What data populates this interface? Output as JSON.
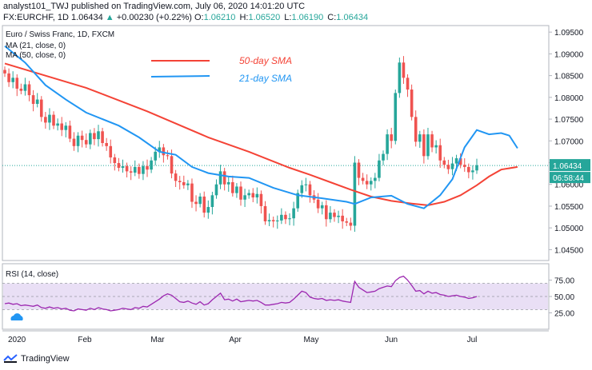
{
  "header": {
    "publisher_line": "analyst101_TWJ published on TradingView.com, July 06, 2020 14:01:20 UTC",
    "symbol": "FX:EURCHF, 1D",
    "last": "1.06434",
    "change_arrow": "▲",
    "change": "+0.00230 (+0.22%)",
    "o_label": "O:",
    "o_value": "1.06210",
    "h_label": "H:",
    "h_value": "1.06520",
    "l_label": "L:",
    "l_value": "1.06190",
    "c_label": "C:",
    "c_value": "1.06434"
  },
  "footer": {
    "brand": "TradingView"
  },
  "colors": {
    "up": "#26a69a",
    "down": "#ef5350",
    "sma50": "#f44336",
    "sma21": "#2196f3",
    "rsi": "#9c27b0",
    "rsi_band": "#e9dff5"
  },
  "chart_data": {
    "type": "candlestick",
    "title": "Euro / Swiss Franc, 1D, FXCM",
    "indicator_labels": [
      "MA (21, close, 0)",
      "MA (50, close, 0)"
    ],
    "legend": [
      {
        "name": "50-day SMA",
        "color": "#f44336"
      },
      {
        "name": "21-day SMA",
        "color": "#2196f3"
      }
    ],
    "price_axis": {
      "ticks": [
        "1.09500",
        "1.09000",
        "1.08500",
        "1.08000",
        "1.07500",
        "1.07000",
        "1.06500",
        "1.06000",
        "1.05500",
        "1.05000",
        "1.04500"
      ],
      "ylim": [
        1.0425,
        1.0965
      ],
      "last_price": "1.06434",
      "countdown": "06:58:44"
    },
    "time_axis": [
      "2020",
      "Feb",
      "Mar",
      "Apr",
      "May",
      "Jun",
      "Jul"
    ],
    "closes": [
      1.0855,
      1.0835,
      1.0845,
      1.082,
      1.0815,
      1.083,
      1.0805,
      1.0785,
      1.0795,
      1.0755,
      1.0742,
      1.076,
      1.0735,
      1.074,
      1.0725,
      1.0735,
      1.0705,
      1.0688,
      1.0712,
      1.0702,
      1.0692,
      1.0718,
      1.0704,
      1.0722,
      1.0695,
      1.0688,
      1.0662,
      1.0649,
      1.0638,
      1.0642,
      1.063,
      1.0627,
      1.064,
      1.0624,
      1.0642,
      1.0634,
      1.0655,
      1.0675,
      1.0685,
      1.0667,
      1.0665,
      1.0625,
      1.0608,
      1.0605,
      1.0598,
      1.0602,
      1.056,
      1.0555,
      1.0572,
      1.0535,
      1.0548,
      1.0575,
      1.06,
      1.063,
      1.06,
      1.0605,
      1.058,
      1.0595,
      1.0565,
      1.0575,
      1.058,
      1.057,
      1.0578,
      1.055,
      1.0515,
      1.0518,
      1.0515,
      1.0517,
      1.053,
      1.052,
      1.0522,
      1.0545,
      1.058,
      1.0598,
      1.06,
      1.0575,
      1.0565,
      1.0545,
      1.0552,
      1.052,
      1.0535,
      1.0525,
      1.0528,
      1.0515,
      1.0512,
      1.0505,
      1.065,
      1.0615,
      1.0608,
      1.06,
      1.0608,
      1.0615,
      1.0655,
      1.067,
      1.0715,
      1.07,
      1.081,
      1.088,
      1.0845,
      1.0818,
      1.0755,
      1.0698,
      1.0715,
      1.0665,
      1.0715,
      1.0685,
      1.069,
      1.0655,
      1.0645,
      1.0635,
      1.0648,
      1.066,
      1.0645,
      1.064,
      1.0628,
      1.0632,
      1.0644
    ],
    "sma50": [
      [
        0,
        1.0878
      ],
      [
        20,
        1.0822
      ],
      [
        35,
        1.0768
      ],
      [
        50,
        1.0708
      ],
      [
        60,
        1.0675
      ],
      [
        70,
        1.0638
      ],
      [
        75,
        1.0622
      ],
      [
        80,
        1.0605
      ],
      [
        85,
        1.0588
      ],
      [
        90,
        1.0572
      ],
      [
        95,
        1.0562
      ],
      [
        100,
        1.0556
      ],
      [
        104,
        1.0552
      ],
      [
        108,
        1.056
      ],
      [
        112,
        1.0575
      ],
      [
        116,
        1.0598
      ],
      [
        119,
        1.0618
      ],
      [
        122,
        1.0634
      ],
      [
        126,
        1.064
      ]
    ],
    "sma21": [
      [
        0,
        1.0918
      ],
      [
        5,
        1.088
      ],
      [
        10,
        1.0828
      ],
      [
        15,
        1.0795
      ],
      [
        20,
        1.0765
      ],
      [
        28,
        1.0735
      ],
      [
        33,
        1.0708
      ],
      [
        38,
        1.0675
      ],
      [
        42,
        1.0668
      ],
      [
        46,
        1.064
      ],
      [
        50,
        1.0626
      ],
      [
        55,
        1.0618
      ],
      [
        60,
        1.0615
      ],
      [
        66,
        1.0592
      ],
      [
        72,
        1.0575
      ],
      [
        78,
        1.0568
      ],
      [
        84,
        1.056
      ],
      [
        86,
        1.0555
      ],
      [
        90,
        1.057
      ],
      [
        95,
        1.0574
      ],
      [
        99,
        1.0555
      ],
      [
        103,
        1.0545
      ],
      [
        107,
        1.0575
      ],
      [
        110,
        1.0612
      ],
      [
        113,
        1.0685
      ],
      [
        116,
        1.0725
      ],
      [
        119,
        1.0715
      ],
      [
        122,
        1.0718
      ],
      [
        124,
        1.0712
      ],
      [
        126,
        1.0683
      ]
    ],
    "rsi": {
      "label": "RSI (14, close)",
      "ticks": [
        "75.00",
        "50.00",
        "25.00"
      ],
      "band": [
        30,
        70
      ],
      "values": [
        39,
        40,
        38,
        39,
        36,
        37,
        36,
        35,
        37,
        33,
        32,
        34,
        32,
        33,
        31,
        32,
        29,
        28,
        31,
        30,
        29,
        32,
        30,
        33,
        31,
        30,
        28,
        29,
        30,
        32,
        31,
        30,
        33,
        32,
        35,
        34,
        38,
        42,
        46,
        51,
        54,
        52,
        47,
        42,
        41,
        43,
        40,
        38,
        42,
        37,
        39,
        45,
        50,
        55,
        45,
        46,
        43,
        46,
        42,
        43,
        44,
        43,
        44,
        41,
        37,
        37,
        38,
        39,
        41,
        40,
        41,
        46,
        52,
        58,
        56,
        49,
        47,
        46,
        47,
        44,
        45,
        44,
        45,
        43,
        42,
        41,
        73,
        64,
        60,
        56,
        57,
        58,
        62,
        64,
        66,
        65,
        74,
        79,
        81,
        75,
        67,
        58,
        59,
        54,
        58,
        55,
        56,
        53,
        52,
        50,
        51,
        52,
        50,
        49,
        47,
        48,
        50
      ]
    }
  }
}
